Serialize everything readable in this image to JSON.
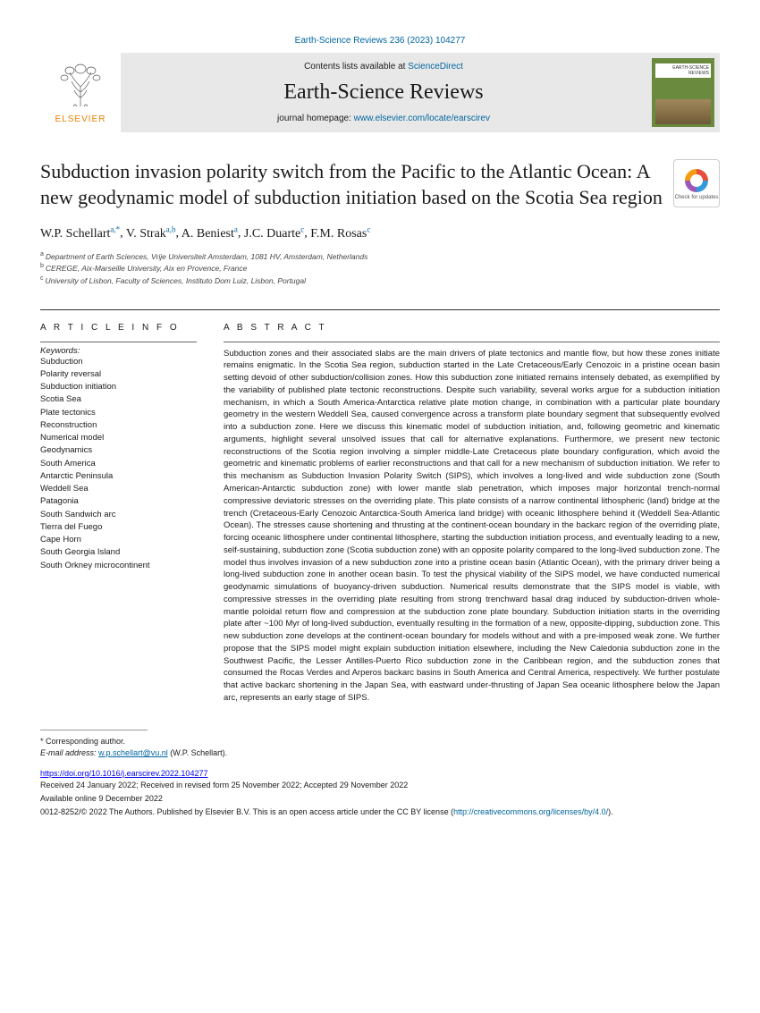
{
  "citation": "Earth-Science Reviews 236 (2023) 104277",
  "header": {
    "contents_prefix": "Contents lists available at ",
    "contents_link": "ScienceDirect",
    "journal": "Earth-Science Reviews",
    "homepage_prefix": "journal homepage: ",
    "homepage_link": "www.elsevier.com/locate/earscirev",
    "publisher": "ELSEVIER",
    "cover_label": "EARTH-SCIENCE REVIEWS"
  },
  "updates_badge": "Check for updates",
  "title": "Subduction invasion polarity switch from the Pacific to the Atlantic Ocean: A new geodynamic model of subduction initiation based on the Scotia Sea region",
  "authors_html": "W.P. Schellart",
  "authors": [
    {
      "name": "W.P. Schellart",
      "aff": "a,*"
    },
    {
      "name": "V. Strak",
      "aff": "a,b"
    },
    {
      "name": "A. Beniest",
      "aff": "a"
    },
    {
      "name": "J.C. Duarte",
      "aff": "c"
    },
    {
      "name": "F.M. Rosas",
      "aff": "c"
    }
  ],
  "affiliations": [
    {
      "key": "a",
      "text": "Department of Earth Sciences, Vrije Universiteit Amsterdam, 1081 HV, Amsterdam, Netherlands"
    },
    {
      "key": "b",
      "text": "CEREGE, Aix-Marseille University, Aix en Provence, France"
    },
    {
      "key": "c",
      "text": "University of Lisbon, Faculty of Sciences, Instituto Dom Luiz, Lisbon, Portugal"
    }
  ],
  "article_info_head": "A R T I C L E  I N F O",
  "abstract_head": "A B S T R A C T",
  "keywords_label": "Keywords:",
  "keywords": [
    "Subduction",
    "Polarity reversal",
    "Subduction initiation",
    "Scotia Sea",
    "Plate tectonics",
    "Reconstruction",
    "Numerical model",
    "Geodynamics",
    "South America",
    "Antarctic Peninsula",
    "Weddell Sea",
    "Patagonia",
    "South Sandwich arc",
    "Tierra del Fuego",
    "Cape Horn",
    "South Georgia Island",
    "South Orkney microcontinent"
  ],
  "abstract": "Subduction zones and their associated slabs are the main drivers of plate tectonics and mantle flow, but how these zones initiate remains enigmatic. In the Scotia Sea region, subduction started in the Late Cretaceous/Early Cenozoic in a pristine ocean basin setting devoid of other subduction/collision zones. How this subduction zone initiated remains intensely debated, as exemplified by the variability of published plate tectonic reconstructions. Despite such variability, several works argue for a subduction initiation mechanism, in which a South America-Antarctica relative plate motion change, in combination with a particular plate boundary geometry in the western Weddell Sea, caused convergence across a transform plate boundary segment that subsequently evolved into a subduction zone. Here we discuss this kinematic model of subduction initiation, and, following geometric and kinematic arguments, highlight several unsolved issues that call for alternative explanations. Furthermore, we present new tectonic reconstructions of the Scotia region involving a simpler middle-Late Cretaceous plate boundary configuration, which avoid the geometric and kinematic problems of earlier reconstructions and that call for a new mechanism of subduction initiation. We refer to this mechanism as Subduction Invasion Polarity Switch (SIPS), which involves a long-lived and wide subduction zone (South American-Antarctic subduction zone) with lower mantle slab penetration, which imposes major horizontal trench-normal compressive deviatoric stresses on the overriding plate. This plate consists of a narrow continental lithospheric (land) bridge at the trench (Cretaceous-Early Cenozoic Antarctica-South America land bridge) with oceanic lithosphere behind it (Weddell Sea-Atlantic Ocean). The stresses cause shortening and thrusting at the continent-ocean boundary in the backarc region of the overriding plate, forcing oceanic lithosphere under continental lithosphere, starting the subduction initiation process, and eventually leading to a new, self-sustaining, subduction zone (Scotia subduction zone) with an opposite polarity compared to the long-lived subduction zone. The model thus involves invasion of a new subduction zone into a pristine ocean basin (Atlantic Ocean), with the primary driver being a long-lived subduction zone in another ocean basin. To test the physical viability of the SIPS model, we have conducted numerical geodynamic simulations of buoyancy-driven subduction. Numerical results demonstrate that the SIPS model is viable, with compressive stresses in the overriding plate resulting from strong trenchward basal drag induced by subduction-driven whole-mantle poloidal return flow and compression at the subduction zone plate boundary. Subduction initiation starts in the overriding plate after ~100 Myr of long-lived subduction, eventually resulting in the formation of a new, opposite-dipping, subduction zone. This new subduction zone develops at the continent-ocean boundary for models without and with a pre-imposed weak zone. We further propose that the SIPS model might explain subduction initiation elsewhere, including the New Caledonia subduction zone in the Southwest Pacific, the Lesser Antilles-Puerto Rico subduction zone in the Caribbean region, and the subduction zones that consumed the Rocas Verdes and Arperos backarc basins in South America and Central America, respectively. We further postulate that active backarc shortening in the Japan Sea, with eastward under-thrusting of Japan Sea oceanic lithosphere below the Japan arc, represents an early stage of SIPS.",
  "corresponding": {
    "star": "* Corresponding author.",
    "email_label": "E-mail address:",
    "email": "w.p.schellart@vu.nl",
    "email_name": "(W.P. Schellart)."
  },
  "doi": "https://doi.org/10.1016/j.earscirev.2022.104277",
  "footer": {
    "received": "Received 24 January 2022; Received in revised form 25 November 2022; Accepted 29 November 2022",
    "online": "Available online 9 December 2022",
    "copyright": "0012-8252/© 2022 The Authors. Published by Elsevier B.V. This is an open access article under the CC BY license (",
    "license_url": "http://creativecommons.org/licenses/by/4.0/",
    "copyright_close": ")."
  },
  "colors": {
    "link": "#0066a0",
    "publisher": "#ee7f00",
    "header_bg": "#e8e8e8",
    "cover_bg": "#6a8a3e"
  }
}
